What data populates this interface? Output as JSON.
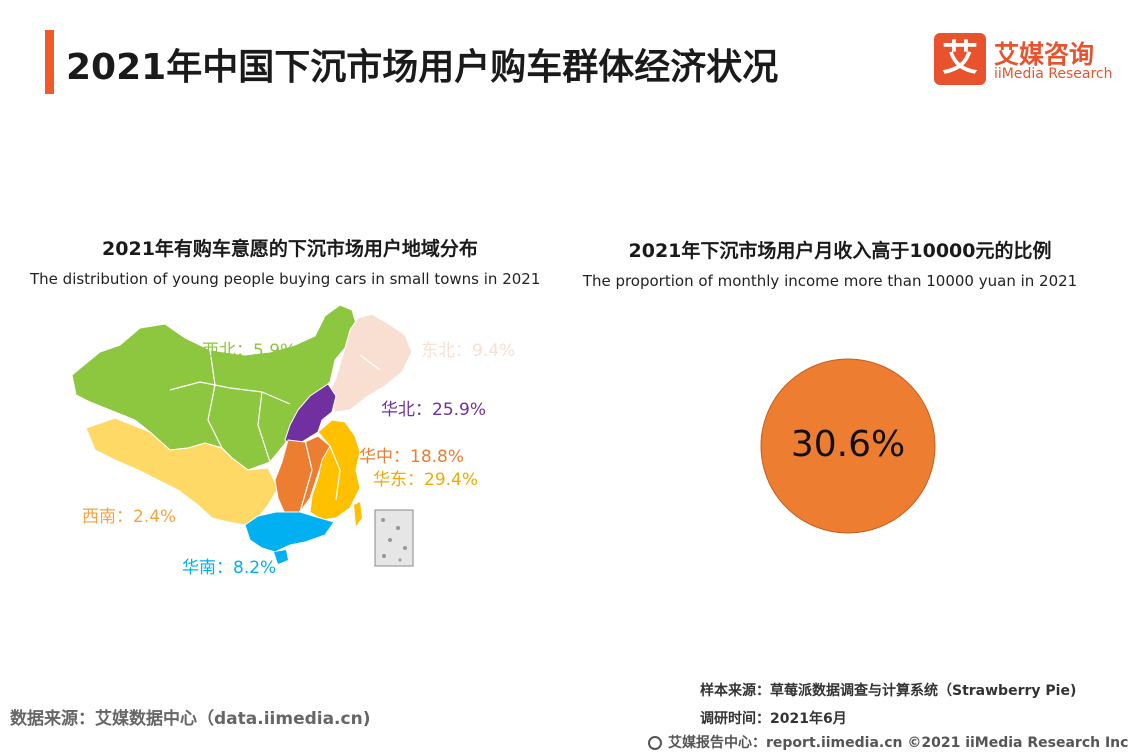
{
  "header": {
    "title": "2021年中国下沉市场用户购车群体经济状况",
    "accent_color": "#f05a28"
  },
  "logo": {
    "glyph": "艾",
    "name_cn": "艾媒咨询",
    "name_en": "iiMedia Research",
    "color": "#e8532e"
  },
  "chart_data": [
    {
      "type": "map",
      "title": "2021年有购车意愿的下沉市场用户地域分布",
      "subtitle": "The distribution of young people buying cars in small towns in 2021",
      "regions": [
        {
          "name": "西北",
          "value": 5.9,
          "label": "西北：5.9%",
          "color": "#8dc63f"
        },
        {
          "name": "东北",
          "value": 9.4,
          "label": "东北：9.4%",
          "color": "#f9dfd2"
        },
        {
          "name": "华北",
          "value": 25.9,
          "label": "华北：25.9%",
          "color": "#7030a0"
        },
        {
          "name": "华中",
          "value": 18.8,
          "label": "华中：18.8%",
          "color": "#ed7d31"
        },
        {
          "name": "华东",
          "value": 29.4,
          "label": "华东：29.4%",
          "color": "#ffc000"
        },
        {
          "name": "西南",
          "value": 2.4,
          "label": "西南：2.4%",
          "color": "#ffd966"
        },
        {
          "name": "华南",
          "value": 8.2,
          "label": "华南：8.2%",
          "color": "#00b0f0"
        }
      ]
    },
    {
      "type": "pie",
      "title": "2021年下沉市场用户月收入高于10000元的比例",
      "subtitle": "The proportion of monthly income more than 10000 yuan in 2021",
      "value": 30.6,
      "label": "30.6%",
      "color": "#ed7d31"
    }
  ],
  "footer": {
    "data_source": "数据来源：艾媒数据中心（data.iimedia.cn)",
    "sample_source": "样本来源：草莓派数据调查与计算系统（Strawberry Pie)",
    "survey_time": "调研时间：2021年6月",
    "report_line": "艾媒报告中心：report.iimedia.cn   ©2021  iiMedia Research  Inc"
  }
}
